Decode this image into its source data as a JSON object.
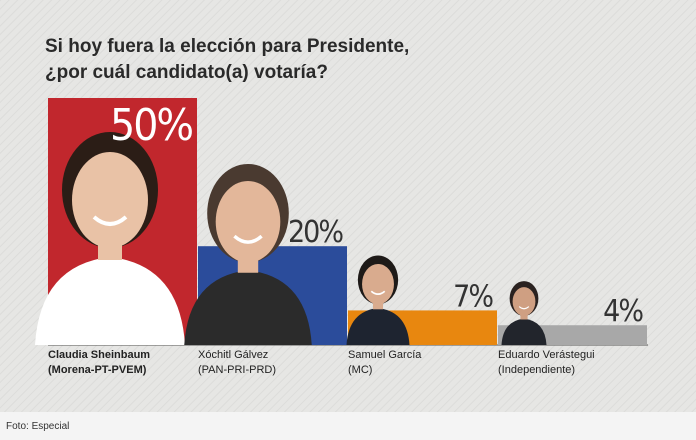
{
  "chart_data": {
    "type": "bar",
    "title": [
      "Si hoy fuera la elección para Presidente,",
      "¿por cuál candidato(a) votaría?"
    ],
    "categories": [
      "Claudia Sheinbaum",
      "Xóchitl Gálvez",
      "Samuel García",
      "Eduardo Verástegui"
    ],
    "parties": [
      "(Morena-PT-PVEM)",
      "(PAN-PRI-PRD)",
      "(MC)",
      "(Independiente)"
    ],
    "values": [
      50,
      20,
      7,
      4
    ],
    "value_labels": [
      "50%",
      "20%",
      "7%",
      "4%"
    ],
    "colors": [
      "#c1272d",
      "#2b4c9b",
      "#e8870f",
      "#a8a8a8"
    ]
  },
  "footer": {
    "credit": "Foto: Especial"
  }
}
